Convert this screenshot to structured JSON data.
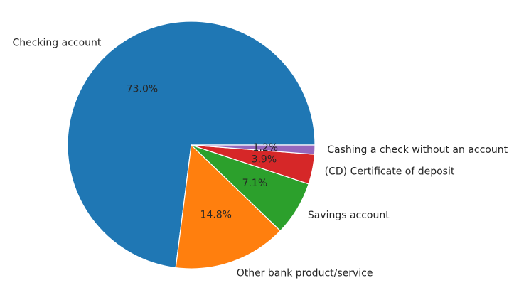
{
  "chart_data": {
    "type": "pie",
    "title": "",
    "start_angle_deg": 0,
    "direction": "counterclockwise",
    "slices": [
      {
        "label": "Checking account",
        "value": 73.0,
        "pct_label": "73.0%",
        "color": "#1f77b4"
      },
      {
        "label": "Other bank product/service",
        "value": 14.8,
        "pct_label": "14.8%",
        "color": "#ff7f0e"
      },
      {
        "label": "Savings account",
        "value": 7.1,
        "pct_label": "7.1%",
        "color": "#2ca02c"
      },
      {
        "label": "(CD) Certificate of deposit",
        "value": 3.9,
        "pct_label": "3.9%",
        "color": "#d62728"
      },
      {
        "label": "Cashing a check without an account",
        "value": 1.2,
        "pct_label": "1.2%",
        "color": "#9467bd"
      }
    ]
  }
}
